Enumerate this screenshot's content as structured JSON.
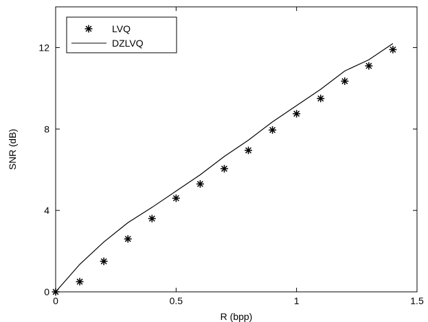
{
  "chart_data": {
    "type": "line",
    "xlabel": "R (bpp)",
    "ylabel": "SNR (dB)",
    "xlim": [
      0,
      1.5
    ],
    "ylim": [
      0,
      14
    ],
    "xticks": [
      0,
      0.5,
      1,
      1.5
    ],
    "xtick_labels": [
      "0",
      "0.5",
      "1",
      "1.5"
    ],
    "yticks": [
      0,
      4,
      8,
      12
    ],
    "ytick_labels": [
      "0",
      "4",
      "8",
      "12"
    ],
    "grid": false,
    "legend_position": "top-left",
    "series": [
      {
        "name": "LVQ",
        "style": "markers",
        "marker": "asterisk",
        "color": "#000000",
        "x": [
          0,
          0.1,
          0.2,
          0.3,
          0.4,
          0.5,
          0.6,
          0.7,
          0.8,
          0.9,
          1.0,
          1.1,
          1.2,
          1.3,
          1.4
        ],
        "y": [
          0,
          0.5,
          1.5,
          2.6,
          3.6,
          4.6,
          5.3,
          6.05,
          6.95,
          7.95,
          8.75,
          9.5,
          10.35,
          11.1,
          11.9
        ]
      },
      {
        "name": "DZLVQ",
        "style": "line",
        "color": "#000000",
        "x": [
          0,
          0.1,
          0.2,
          0.3,
          0.4,
          0.5,
          0.6,
          0.7,
          0.8,
          0.9,
          1.0,
          1.1,
          1.2,
          1.3,
          1.4
        ],
        "y": [
          0,
          1.35,
          2.45,
          3.4,
          4.15,
          4.95,
          5.75,
          6.65,
          7.45,
          8.35,
          9.15,
          9.95,
          10.85,
          11.4,
          12.2
        ]
      }
    ]
  }
}
